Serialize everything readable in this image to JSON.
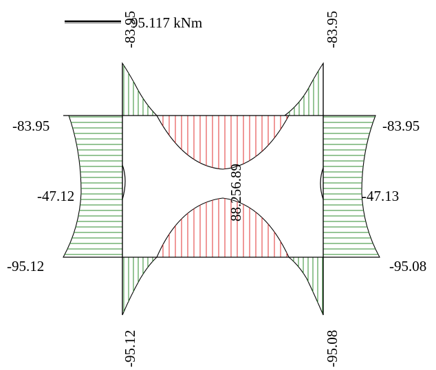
{
  "legend": {
    "text": "95.117 kNm"
  },
  "labels": {
    "top_left_column": "-83.95",
    "top_right_column": "-83.95",
    "bottom_left_column": "-95.12",
    "bottom_right_column": "-95.08",
    "left_top": "-83.95",
    "left_mid": "-47.12",
    "left_bottom": "-95.12",
    "right_top": "-83.95",
    "right_mid": "-47.13",
    "right_bottom": "-95.08",
    "center": "88.256.89"
  },
  "colors": {
    "negative_moment": "#2e8b2e",
    "positive_moment": "#e03030"
  }
}
